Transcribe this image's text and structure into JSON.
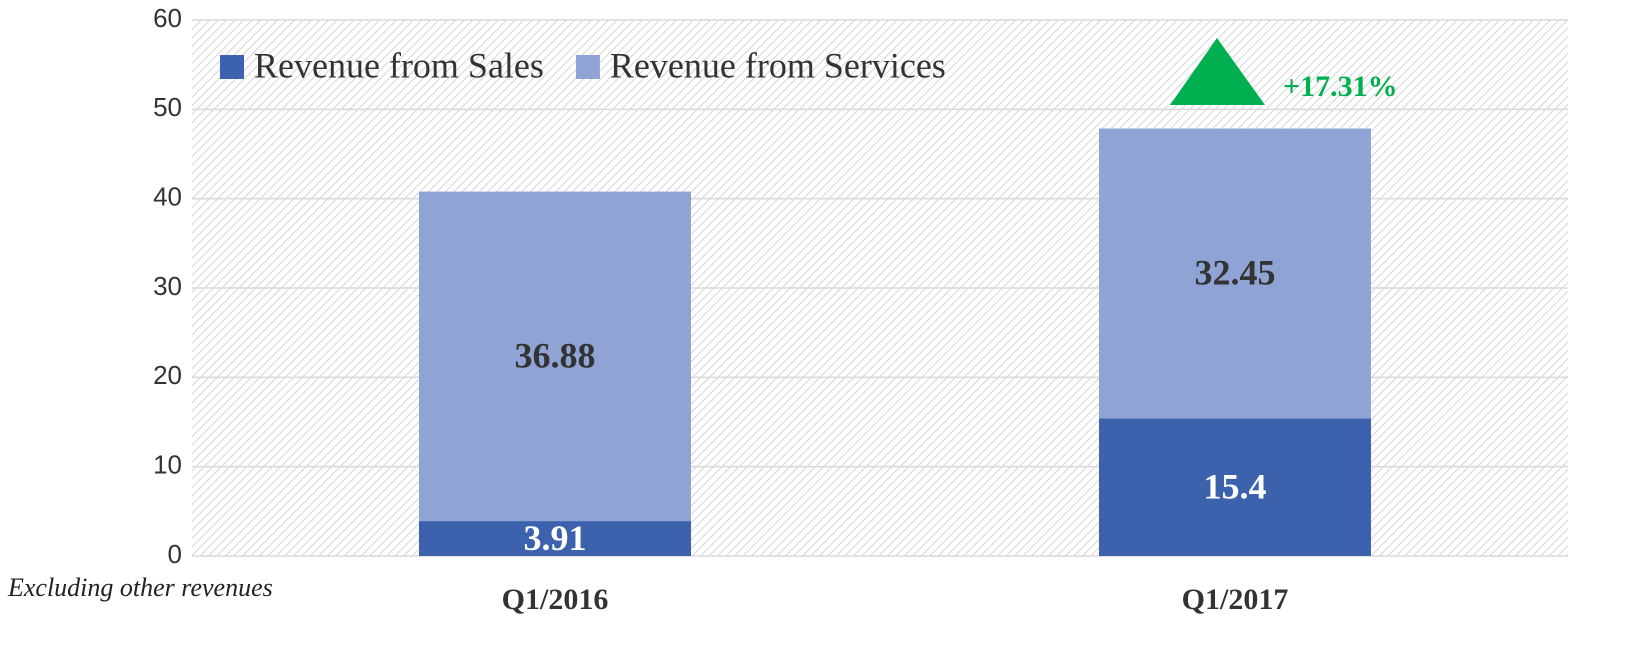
{
  "chart_data": {
    "type": "stacked_bar",
    "categories": [
      "Q1/2016",
      "Q1/2017"
    ],
    "series": [
      {
        "name": "Revenue from Sales",
        "color": "#3d62ad",
        "values": [
          3.91,
          15.4
        ]
      },
      {
        "name": "Revenue from Services",
        "color": "#8fa3d4",
        "values": [
          36.88,
          32.45
        ]
      }
    ],
    "ylim": [
      0,
      60
    ],
    "yticks": [
      0,
      10,
      20,
      30,
      40,
      50,
      60
    ],
    "grid": true,
    "legend": "top-left",
    "annotation": "+17.31%",
    "note": "Excluding other revenues"
  }
}
